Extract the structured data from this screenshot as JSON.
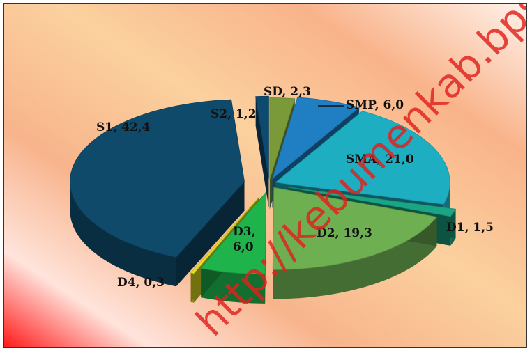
{
  "chart_data": {
    "type": "pie",
    "title": "",
    "style": "3d-exploded",
    "slices": [
      {
        "label": "SD, 2,3",
        "category": "SD",
        "value": 2.3,
        "color": "#7a9a3a"
      },
      {
        "label": "SMP, 6,0",
        "category": "SMP",
        "value": 6.0,
        "color": "#1f7fc2"
      },
      {
        "label": "SMA, 21,0",
        "category": "SMA",
        "value": 21.0,
        "color": "#1eaec2"
      },
      {
        "label": "D1, 1,5",
        "category": "D1",
        "value": 1.5,
        "color": "#1aa584"
      },
      {
        "label": "D2, 19,3",
        "category": "D2",
        "value": 19.3,
        "color": "#6eaf52"
      },
      {
        "label": "D3, 6,0",
        "category": "D3",
        "value": 6.0,
        "color": "#1fb34b"
      },
      {
        "label": "D4, 0,3",
        "category": "D4",
        "value": 0.3,
        "color": "#e3e01d"
      },
      {
        "label": "S1, 42,4",
        "category": "S1",
        "value": 42.4,
        "color": "#0f4a6b"
      },
      {
        "label": "S2, 1,2",
        "category": "S2",
        "value": 1.2,
        "color": "#0e4a70"
      }
    ],
    "watermark": "http://kebumenkab.bps.go.id"
  }
}
